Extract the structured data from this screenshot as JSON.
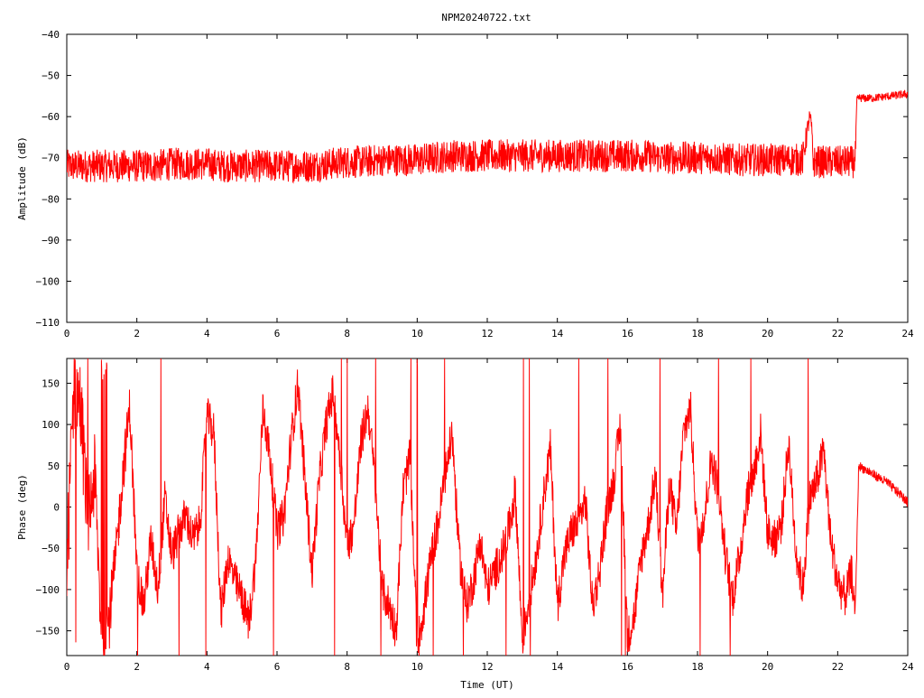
{
  "title": "NPM20240722.txt",
  "series_color": "#ff0000",
  "chart_data": [
    {
      "type": "line",
      "name": "amplitude",
      "title": "NPM20240722.txt",
      "xlabel": "",
      "ylabel": "Amplitude (dB)",
      "xlim": [
        0,
        24
      ],
      "ylim": [
        -110,
        -40
      ],
      "xticks": [
        "0",
        "2",
        "4",
        "6",
        "8",
        "10",
        "12",
        "14",
        "16",
        "18",
        "20",
        "22",
        "24"
      ],
      "yticks": [
        "-40",
        "-50",
        "-60",
        "-70",
        "-80",
        "-90",
        "-100",
        "-110"
      ],
      "grid": false,
      "series": [
        {
          "x": [
            0,
            0.5,
            1,
            1.5,
            2,
            2.5,
            3,
            3.5,
            4,
            4.5,
            5,
            5.5,
            6,
            6.5,
            7,
            7.5,
            8,
            8.5,
            9,
            9.5,
            10,
            10.5,
            11,
            11.5,
            12,
            12.5,
            13,
            13.5,
            14,
            14.5,
            15,
            15.5,
            16,
            16.5,
            17,
            17.5,
            18,
            18.5,
            19,
            19.5,
            20,
            20.5,
            21,
            21.2,
            21.25,
            21.3,
            21.5,
            22,
            22.5,
            22.55,
            22.6,
            22.8,
            23,
            23.5,
            24
          ],
          "y": [
            -72,
            -72,
            -72,
            -72,
            -72,
            -72,
            -71.5,
            -71.5,
            -71.5,
            -72,
            -72,
            -72,
            -72,
            -72,
            -72,
            -71.5,
            -71,
            -71,
            -70.5,
            -70.5,
            -70.5,
            -70,
            -69.5,
            -69.5,
            -69.5,
            -69.5,
            -69.5,
            -69.5,
            -69.5,
            -69.5,
            -69.5,
            -69.5,
            -69.5,
            -69.5,
            -70,
            -70,
            -70,
            -70,
            -70.5,
            -70.5,
            -70.5,
            -70.5,
            -70.5,
            -60,
            -62,
            -71,
            -71,
            -71,
            -71,
            -56,
            -55.5,
            -55.5,
            -55.5,
            -55,
            -54.5
          ],
          "noise": [
            4,
            4,
            4,
            4,
            4,
            4,
            4,
            4,
            4,
            4,
            4,
            4,
            4,
            4,
            4,
            4,
            4,
            4,
            4,
            4,
            4,
            4,
            4,
            4,
            4,
            4,
            4,
            4,
            4,
            4,
            4,
            4,
            4,
            4,
            4,
            4,
            4,
            4,
            4,
            4,
            4,
            4,
            4,
            2,
            2,
            4,
            4,
            4,
            4,
            1,
            1,
            1,
            1,
            1,
            1
          ]
        }
      ]
    },
    {
      "type": "line",
      "name": "phase",
      "title": "",
      "xlabel": "Time (UT)",
      "ylabel": "Phase (deg)",
      "xlim": [
        0,
        24
      ],
      "ylim": [
        -180,
        180
      ],
      "xticks": [
        "0",
        "2",
        "4",
        "6",
        "8",
        "10",
        "12",
        "14",
        "16",
        "18",
        "20",
        "22",
        "24"
      ],
      "yticks": [
        "150",
        "100",
        "50",
        "0",
        "-50",
        "-100",
        "-150"
      ],
      "grid": false,
      "series": [
        {
          "x": [
            0,
            0.2,
            0.4,
            0.6,
            0.8,
            1.0,
            1.2,
            1.4,
            1.6,
            1.8,
            2.0,
            2.2,
            2.4,
            2.6,
            2.8,
            3.0,
            3.2,
            3.4,
            3.6,
            3.8,
            4.0,
            4.2,
            4.4,
            4.6,
            4.8,
            5.0,
            5.2,
            5.4,
            5.6,
            5.8,
            6.0,
            6.2,
            6.4,
            6.6,
            6.8,
            7.0,
            7.2,
            7.4,
            7.6,
            7.8,
            8.0,
            8.2,
            8.4,
            8.6,
            8.8,
            9.0,
            9.2,
            9.4,
            9.6,
            9.8,
            10.0,
            10.2,
            10.4,
            10.6,
            10.8,
            11.0,
            11.2,
            11.4,
            11.6,
            11.8,
            12.0,
            12.2,
            12.4,
            12.6,
            12.8,
            13.0,
            13.2,
            13.4,
            13.6,
            13.8,
            14.0,
            14.2,
            14.4,
            14.6,
            14.8,
            15.0,
            15.2,
            15.4,
            15.6,
            15.8,
            16.0,
            16.2,
            16.4,
            16.6,
            16.8,
            17.0,
            17.2,
            17.4,
            17.6,
            17.8,
            18.0,
            18.2,
            18.4,
            18.6,
            18.8,
            19.0,
            19.2,
            19.4,
            19.6,
            19.8,
            20.0,
            20.2,
            20.4,
            20.6,
            20.8,
            21.0,
            21.2,
            21.4,
            21.6,
            21.8,
            22.0,
            22.2,
            22.4,
            22.5,
            22.6,
            22.8,
            23.0,
            23.2,
            23.4,
            23.6,
            23.8,
            24.0
          ],
          "y": [
            -80,
            150,
            120,
            -20,
            40,
            -170,
            -140,
            -60,
            40,
            120,
            -80,
            -120,
            -40,
            -100,
            10,
            -60,
            -30,
            -10,
            -40,
            -20,
            110,
            90,
            -130,
            -60,
            -90,
            -110,
            -140,
            -60,
            120,
            60,
            -30,
            -10,
            80,
            150,
            30,
            -80,
            30,
            100,
            140,
            60,
            -50,
            -20,
            80,
            120,
            30,
            -100,
            -120,
            -150,
            20,
            60,
            -170,
            -120,
            -60,
            -20,
            40,
            90,
            -60,
            -120,
            -90,
            -40,
            -100,
            -80,
            -60,
            -30,
            20,
            -160,
            -110,
            -60,
            10,
            70,
            -120,
            -60,
            -30,
            -20,
            10,
            -120,
            -80,
            -10,
            30,
            100,
            -160,
            -130,
            -60,
            -20,
            40,
            -110,
            30,
            -30,
            90,
            120,
            -40,
            -10,
            60,
            20,
            -60,
            -110,
            -60,
            10,
            40,
            90,
            -30,
            -40,
            -20,
            80,
            -50,
            -100,
            10,
            30,
            70,
            -40,
            -90,
            -110,
            -80,
            -130,
            50,
            45,
            40,
            35,
            30,
            22,
            15,
            5
          ],
          "noise": [
            60,
            60,
            60,
            50,
            50,
            40,
            40,
            30,
            30,
            30,
            25,
            25,
            25,
            25,
            25,
            25,
            25,
            25,
            25,
            25,
            25,
            25,
            25,
            25,
            25,
            25,
            25,
            25,
            25,
            25,
            25,
            25,
            25,
            25,
            25,
            25,
            25,
            25,
            25,
            25,
            25,
            25,
            25,
            25,
            25,
            25,
            25,
            25,
            25,
            25,
            25,
            25,
            25,
            25,
            25,
            25,
            25,
            25,
            25,
            25,
            25,
            25,
            25,
            25,
            25,
            25,
            25,
            25,
            25,
            25,
            25,
            25,
            25,
            25,
            25,
            25,
            25,
            25,
            25,
            25,
            25,
            25,
            25,
            25,
            25,
            25,
            25,
            25,
            25,
            25,
            25,
            25,
            25,
            25,
            25,
            25,
            25,
            25,
            25,
            25,
            25,
            25,
            25,
            25,
            25,
            25,
            25,
            25,
            25,
            25,
            25,
            25,
            25,
            8,
            6,
            6,
            6,
            6,
            6,
            6,
            6,
            6
          ]
        }
      ]
    }
  ]
}
